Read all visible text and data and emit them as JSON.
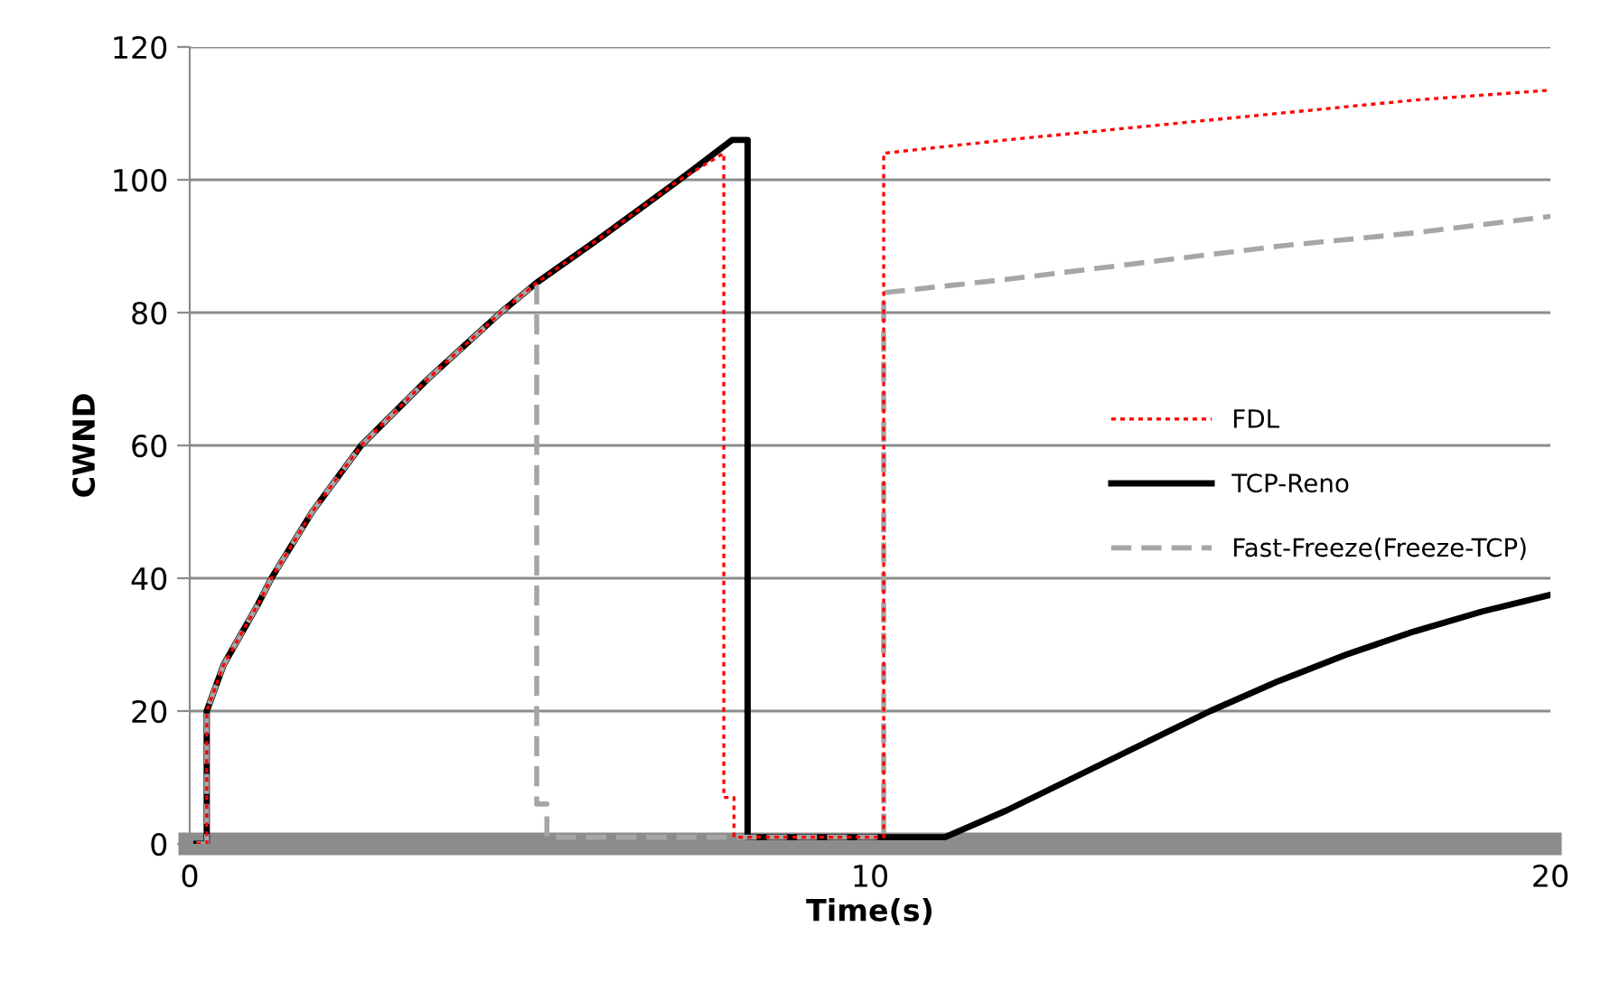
{
  "chart_data": {
    "type": "line",
    "xlabel": "Time(s)",
    "ylabel": "CWND",
    "xlim": [
      0,
      20
    ],
    "xticks": [
      0,
      10,
      20
    ],
    "ylim": [
      0,
      120
    ],
    "yticks": [
      0,
      20,
      40,
      60,
      80,
      100,
      120
    ],
    "grid": "y",
    "legend": "right",
    "marker": "none",
    "series": [
      {
        "name": "FDL",
        "color": "#ff0000",
        "line_style": "dotted",
        "x": [
          0.1,
          0.25,
          0.25,
          0.5,
          1.0,
          1.2,
          1.8,
          2.52,
          3.5,
          4.57,
          5.1,
          6.0,
          7.2,
          7.85,
          7.85,
          8.0,
          8.0,
          8.2,
          10.2,
          10.2,
          12,
          14,
          16,
          18,
          20
        ],
        "values": [
          0,
          0,
          20,
          27,
          36,
          40,
          50,
          60,
          70,
          80,
          84.5,
          91,
          100,
          104,
          7,
          7,
          1,
          1,
          1,
          104,
          106,
          108,
          110,
          112,
          113.5
        ]
      },
      {
        "name": "TCP-Reno",
        "color": "#000000",
        "line_style": "solid",
        "x": [
          0.1,
          0.25,
          0.25,
          0.5,
          1.0,
          1.2,
          1.8,
          2.52,
          3.5,
          4.57,
          5.1,
          6.0,
          7.2,
          7.97,
          8.2,
          8.2,
          10.2,
          11.1,
          12,
          13,
          14,
          15,
          16,
          17,
          18,
          19,
          20
        ],
        "values": [
          0,
          0,
          20,
          27,
          36,
          40,
          50,
          60,
          70,
          80,
          84.5,
          91,
          100,
          106,
          106,
          1,
          1,
          1,
          5,
          10,
          15,
          20,
          24.5,
          28.5,
          32,
          35,
          37.5
        ]
      },
      {
        "name": "Fast-Freeze(Freeze-TCP)",
        "color": "#a6a6a6",
        "line_style": "dashed",
        "x": [
          0.1,
          0.25,
          0.25,
          0.5,
          1.0,
          1.2,
          1.8,
          2.52,
          3.5,
          4.57,
          5.1,
          5.1,
          5.25,
          5.25,
          10.2,
          10.2,
          12,
          14,
          16,
          18,
          20
        ],
        "values": [
          0,
          0,
          20,
          27,
          36,
          40,
          50,
          60,
          70,
          80,
          84.5,
          6,
          6,
          1,
          1,
          83,
          85,
          87.5,
          90,
          92,
          94.5
        ]
      }
    ]
  }
}
